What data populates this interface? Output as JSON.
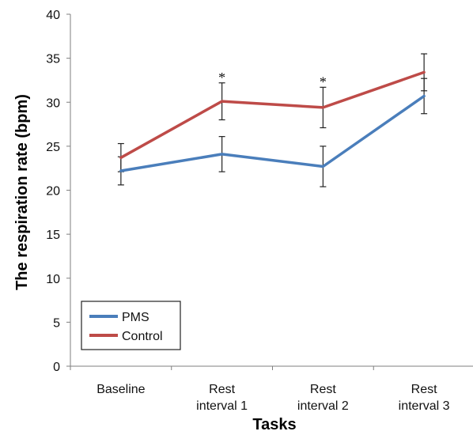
{
  "chart_data": {
    "type": "line",
    "title": "",
    "xlabel": "Tasks",
    "ylabel": "The respiration rate (bpm)",
    "ylim": [
      0,
      40
    ],
    "yticks": [
      0,
      5,
      10,
      15,
      20,
      25,
      30,
      35,
      40
    ],
    "categories": [
      [
        "Baseline"
      ],
      [
        "Rest",
        "interval 1"
      ],
      [
        "Rest",
        "interval 2"
      ],
      [
        "Rest",
        "interval 3"
      ]
    ],
    "series": [
      {
        "name": "PMS",
        "color": "#4a7ebb",
        "values": [
          22.2,
          24.1,
          22.7,
          30.7
        ],
        "error": [
          1.6,
          2.0,
          2.3,
          2.0
        ]
      },
      {
        "name": "Control",
        "color": "#be4b48",
        "values": [
          23.7,
          30.1,
          29.4,
          33.4
        ],
        "error": [
          1.6,
          2.1,
          2.3,
          2.1
        ]
      }
    ],
    "annotations": [
      {
        "text": "*",
        "category_index": 1
      },
      {
        "text": "*",
        "category_index": 2
      }
    ],
    "legend": {
      "position": "bottom-left",
      "entries": [
        "PMS",
        "Control"
      ]
    },
    "grid": false
  }
}
